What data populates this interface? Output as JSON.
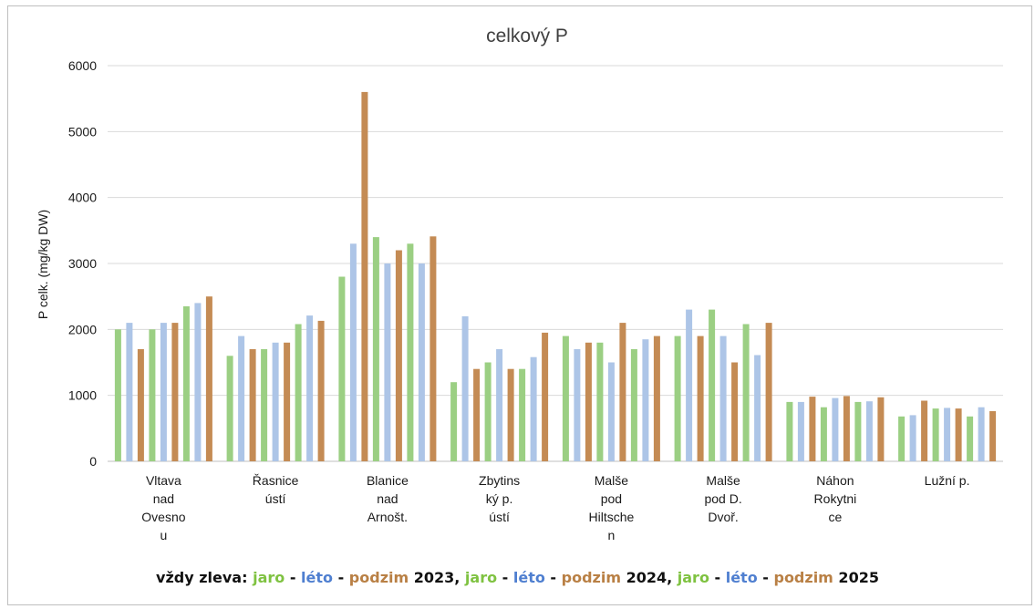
{
  "chart_data": {
    "type": "bar",
    "title": "celkový P",
    "ylabel": "P celk. (mg/kg DW)",
    "ylim": [
      0,
      6000
    ],
    "yticks": [
      "0",
      "1000",
      "2000",
      "3000",
      "4000",
      "5000",
      "6000"
    ],
    "grid": true,
    "categories": [
      [
        "Vltava",
        "nad",
        "Ovesno",
        "u"
      ],
      [
        "Řasnice",
        "ústí"
      ],
      [
        "Blanice",
        "nad",
        "Arnošt."
      ],
      [
        "Zbytins",
        "ký p.",
        "ústí"
      ],
      [
        "Malše",
        "pod",
        "Hiltsche",
        "n"
      ],
      [
        "Malše",
        "pod D.",
        "Dvoř."
      ],
      [
        "Náhon",
        "Rokytni",
        "ce"
      ],
      [
        "Lužní p."
      ]
    ],
    "bar_colors": [
      "#9bcf83",
      "#adc5e7",
      "#c48b54",
      "#9bcf83",
      "#adc5e7",
      "#c48b54",
      "#9bcf83",
      "#adc5e7",
      "#c48b54"
    ],
    "values": [
      [
        2000,
        2100,
        1700,
        2000,
        2100,
        2100,
        2350,
        2400,
        2500
      ],
      [
        1600,
        1900,
        1700,
        1700,
        1800,
        1800,
        2080,
        2210,
        2130
      ],
      [
        2800,
        3300,
        5600,
        3400,
        3000,
        3200,
        3300,
        3000,
        3410
      ],
      [
        1200,
        2200,
        1400,
        1500,
        1700,
        1400,
        1400,
        1580,
        1950
      ],
      [
        1900,
        1700,
        1800,
        1800,
        1500,
        2100,
        1700,
        1850,
        1900
      ],
      [
        1900,
        2300,
        1900,
        2300,
        1900,
        1500,
        2080,
        1610,
        2100
      ],
      [
        900,
        900,
        980,
        820,
        960,
        990,
        900,
        910,
        970
      ],
      [
        680,
        700,
        920,
        800,
        810,
        800,
        680,
        820,
        760
      ]
    ]
  },
  "footnote": [
    {
      "text": "vždy zleva: ",
      "color": "#111111"
    },
    {
      "text": "jaro",
      "color": "#7fc241"
    },
    {
      "text": " - ",
      "color": "#111111"
    },
    {
      "text": "léto",
      "color": "#4f7fd0"
    },
    {
      "text": " - ",
      "color": "#111111"
    },
    {
      "text": "podzim",
      "color": "#b98045"
    },
    {
      "text": " 2023, ",
      "color": "#111111"
    },
    {
      "text": "jaro",
      "color": "#7fc241"
    },
    {
      "text": " - ",
      "color": "#111111"
    },
    {
      "text": "léto",
      "color": "#4f7fd0"
    },
    {
      "text": " - ",
      "color": "#111111"
    },
    {
      "text": "podzim",
      "color": "#b98045"
    },
    {
      "text": " 2024, ",
      "color": "#111111"
    },
    {
      "text": "jaro",
      "color": "#7fc241"
    },
    {
      "text": " - ",
      "color": "#111111"
    },
    {
      "text": "léto",
      "color": "#4f7fd0"
    },
    {
      "text": " - ",
      "color": "#111111"
    },
    {
      "text": "podzim",
      "color": "#b98045"
    },
    {
      "text": " 2025",
      "color": "#111111"
    }
  ]
}
